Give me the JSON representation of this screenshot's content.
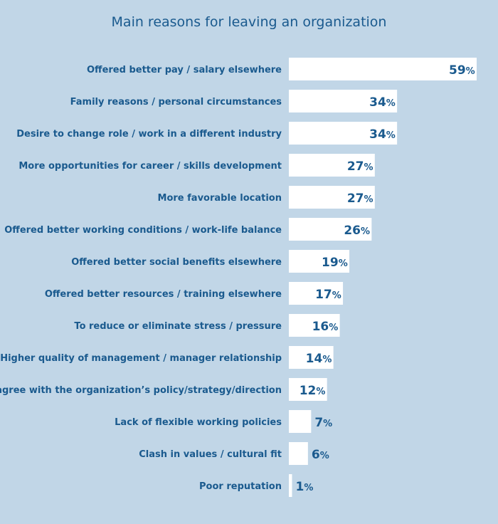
{
  "chart_data": {
    "type": "bar",
    "orientation": "horizontal",
    "title": "Main reasons for leaving an organization",
    "categories": [
      "Offered better pay / salary elsewhere",
      "Family reasons / personal circumstances",
      "Desire to change role / work in a different industry",
      "More opportunities for career / skills development",
      "More favorable location",
      "Offered better working conditions / work-life balance",
      "Offered better social benefits elsewhere",
      "Offered better resources / training elsewhere",
      "To reduce or eliminate stress / pressure",
      "Higher quality of management / manager relationship",
      "Disagree with the organization’s policy/strategy/direction",
      "Lack of flexible working policies",
      "Clash in values / cultural fit",
      "Poor reputation"
    ],
    "values": [
      59,
      34,
      34,
      27,
      27,
      26,
      19,
      17,
      16,
      14,
      12,
      7,
      6,
      1
    ],
    "value_labels": [
      "59%",
      "34%",
      "34%",
      "27%",
      "27%",
      "26%",
      "19%",
      "17%",
      "16%",
      "14%",
      "12%",
      "7%",
      "6%",
      "1%"
    ],
    "unit": "%",
    "xlim": [
      0,
      59
    ],
    "grid": false,
    "colors": {
      "background": "#c1d6e7",
      "bar": "#ffffff",
      "text": "#1a5a8e"
    }
  }
}
